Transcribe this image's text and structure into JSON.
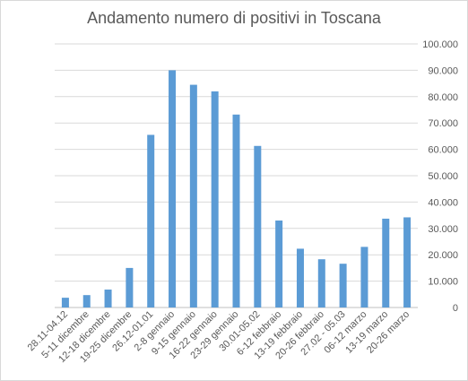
{
  "chart_data": {
    "type": "bar",
    "title": "Andamento numero di positivi in Toscana",
    "xlabel": "",
    "ylabel": "",
    "ylim": [
      0,
      100000
    ],
    "y_ticks": [
      {
        "value": 0,
        "label": "0"
      },
      {
        "value": 10000,
        "label": "10.000"
      },
      {
        "value": 20000,
        "label": "20.000"
      },
      {
        "value": 30000,
        "label": "30.000"
      },
      {
        "value": 40000,
        "label": "40.000"
      },
      {
        "value": 50000,
        "label": "50.000"
      },
      {
        "value": 60000,
        "label": "60.000"
      },
      {
        "value": 70000,
        "label": "70.000"
      },
      {
        "value": 80000,
        "label": "80.000"
      },
      {
        "value": 90000,
        "label": "90.000"
      },
      {
        "value": 100000,
        "label": "100.000"
      }
    ],
    "y_axis_side": "right",
    "grid": true,
    "bar_color": "#5b9bd5",
    "categories": [
      "28.11-04.12",
      "5-11 dicembre",
      "12-18 dicembre",
      "19-25 dicembre",
      "26.12-01.01",
      "2-8 gennaio",
      "9-15 gennaio",
      "16-22 gennaio",
      "23-29 gennaio",
      "30.01-05.02",
      "6-12 febbraio",
      "13-19 febbraio",
      "20-26 febbraio",
      "27.02 - 05.03",
      "06-12 marzo",
      "13-19 marzo",
      "20-26 marzo"
    ],
    "values": [
      3700,
      4700,
      6800,
      15000,
      65500,
      90000,
      84500,
      82000,
      73200,
      61300,
      33000,
      22300,
      18300,
      16600,
      23000,
      33700,
      34200
    ]
  }
}
